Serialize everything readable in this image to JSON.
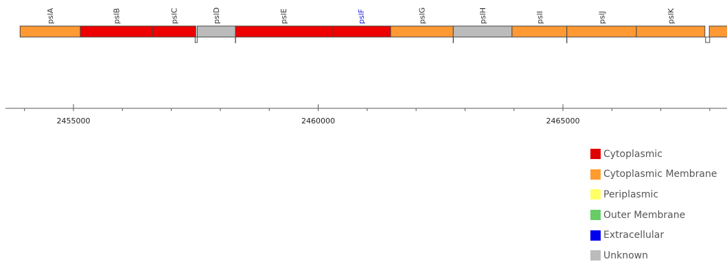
{
  "genome_region": {
    "genes": [
      {
        "name": "pslA",
        "start": 2453910,
        "end": 2455140,
        "category": "Cytoplasmic Membrane",
        "highlighted": false
      },
      {
        "name": "pslB",
        "start": 2455140,
        "end": 2456610,
        "category": "Cytoplasmic",
        "highlighted": false
      },
      {
        "name": "pslC",
        "start": 2456610,
        "end": 2457500,
        "category": "Cytoplasmic",
        "highlighted": false
      },
      {
        "name": "pslD",
        "start": 2457530,
        "end": 2458310,
        "category": "Unknown",
        "highlighted": false
      },
      {
        "name": "pslE",
        "start": 2458310,
        "end": 2460280,
        "category": "Cytoplasmic",
        "highlighted": false
      },
      {
        "name": "pslF",
        "start": 2460280,
        "end": 2461480,
        "category": "Cytoplasmic",
        "highlighted": true
      },
      {
        "name": "pslG",
        "start": 2461480,
        "end": 2462760,
        "category": "Cytoplasmic Membrane",
        "highlighted": false
      },
      {
        "name": "pslH",
        "start": 2462760,
        "end": 2463960,
        "category": "Unknown",
        "highlighted": false
      },
      {
        "name": "pslI",
        "start": 2463960,
        "end": 2465080,
        "category": "Cytoplasmic Membrane",
        "highlighted": false
      },
      {
        "name": "pslJ",
        "start": 2465080,
        "end": 2466500,
        "category": "Cytoplasmic Membrane",
        "highlighted": false
      },
      {
        "name": "pslK",
        "start": 2466500,
        "end": 2467900,
        "category": "Cytoplasmic Membrane",
        "highlighted": false
      },
      {
        "name": "",
        "start": 2467990,
        "end": 2468800,
        "category": "Cytoplasmic Membrane",
        "highlighted": false
      }
    ],
    "axis": {
      "labeled_ticks": [
        "2455000",
        "2460000",
        "2465000"
      ]
    }
  },
  "legend": {
    "items": [
      {
        "label": "Cytoplasmic",
        "color": "#e10000"
      },
      {
        "label": "Cytoplasmic Membrane",
        "color": "#ff9c2f"
      },
      {
        "label": "Periplasmic",
        "color": "#ffff66"
      },
      {
        "label": "Outer Membrane",
        "color": "#66cc66"
      },
      {
        "label": "Extracellular",
        "color": "#0000ee"
      },
      {
        "label": "Unknown",
        "color": "#bbbbbb"
      }
    ]
  },
  "colors": {
    "Cytoplasmic": "#ee0000",
    "Cytoplasmic Membrane": "#ff9933",
    "Unknown": "#bbbbbb",
    "highlight_label": "#2222dd",
    "normal_label": "#333333"
  }
}
